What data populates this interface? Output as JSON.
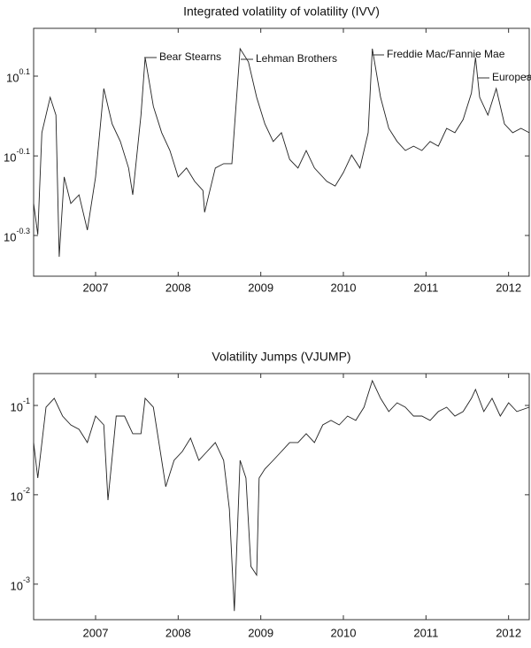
{
  "chart_data": [
    {
      "type": "line",
      "title": "Integrated volatility of volatility (IVV)",
      "log_y": true,
      "annotations": [
        "Bear Stearns",
        "Lehman Brothers",
        "Freddie Mac/Fannie Mae",
        "Europea"
      ],
      "xlim": [
        2006.25,
        2012.25
      ],
      "xticks": [
        2007,
        2008,
        2009,
        2010,
        2011,
        2012
      ],
      "ylim": [
        0.396,
        1.66
      ],
      "yticks": [
        {
          "value": 0.501,
          "label": "10",
          "exponent": "-0.3"
        },
        {
          "value": 0.794,
          "label": "10",
          "exponent": "-0.1"
        },
        {
          "value": 1.259,
          "label": "10",
          "exponent": "0.1"
        }
      ],
      "series": [
        {
          "color": "#222222",
          "x": [
            2006.25,
            2006.3,
            2006.35,
            2006.45,
            2006.52,
            2006.56,
            2006.62,
            2006.7,
            2006.8,
            2006.9,
            2007.0,
            2007.1,
            2007.2,
            2007.3,
            2007.4,
            2007.45,
            2007.55,
            2007.6,
            2007.7,
            2007.8,
            2007.9,
            2008.0,
            2008.1,
            2008.2,
            2008.3,
            2008.32,
            2008.45,
            2008.55,
            2008.65,
            2008.75,
            2008.85,
            2008.95,
            2009.05,
            2009.15,
            2009.25,
            2009.35,
            2009.45,
            2009.55,
            2009.65,
            2009.8,
            2009.9,
            2010.0,
            2010.1,
            2010.2,
            2010.3,
            2010.35,
            2010.45,
            2010.55,
            2010.65,
            2010.75,
            2010.85,
            2010.95,
            2011.05,
            2011.15,
            2011.25,
            2011.35,
            2011.45,
            2011.55,
            2011.6,
            2011.65,
            2011.75,
            2011.85,
            2011.95,
            2012.05,
            2012.15,
            2012.25
          ],
          "values": [
            0.603,
            0.504,
            0.908,
            1.114,
            1.005,
            0.443,
            0.703,
            0.603,
            0.634,
            0.517,
            0.703,
            1.172,
            0.955,
            0.863,
            0.74,
            0.634,
            1.005,
            1.402,
            1.057,
            0.908,
            0.819,
            0.703,
            0.74,
            0.685,
            0.65,
            0.573,
            0.74,
            0.759,
            0.759,
            1.476,
            1.367,
            1.114,
            0.955,
            0.863,
            0.908,
            0.778,
            0.74,
            0.819,
            0.74,
            0.685,
            0.667,
            0.721,
            0.798,
            0.74,
            0.908,
            1.476,
            1.114,
            0.931,
            0.863,
            0.819,
            0.84,
            0.819,
            0.863,
            0.84,
            0.931,
            0.908,
            0.98,
            1.142,
            1.402,
            1.114,
            1.005,
            1.172,
            0.955,
            0.908,
            0.931,
            0.908
          ]
        }
      ]
    },
    {
      "type": "line",
      "title": "Volatility Jumps (VJUMP)",
      "log_y": true,
      "xlim": [
        2006.25,
        2012.25
      ],
      "xticks": [
        2007,
        2008,
        2009,
        2010,
        2011,
        2012
      ],
      "ylim": [
        0.0004,
        0.227
      ],
      "yticks": [
        {
          "value": 0.001,
          "label": "10",
          "exponent": "-3"
        },
        {
          "value": 0.01,
          "label": "10",
          "exponent": "-2"
        },
        {
          "value": 0.1,
          "label": "10",
          "exponent": "-1"
        }
      ],
      "series": [
        {
          "color": "#222222",
          "x": [
            2006.25,
            2006.3,
            2006.4,
            2006.5,
            2006.6,
            2006.7,
            2006.8,
            2006.9,
            2007.0,
            2007.1,
            2007.15,
            2007.25,
            2007.35,
            2007.45,
            2007.55,
            2007.6,
            2007.7,
            2007.8,
            2007.85,
            2007.95,
            2008.05,
            2008.15,
            2008.25,
            2008.35,
            2008.45,
            2008.55,
            2008.62,
            2008.68,
            2008.75,
            2008.82,
            2008.88,
            2008.95,
            2008.98,
            2009.05,
            2009.15,
            2009.25,
            2009.35,
            2009.45,
            2009.55,
            2009.65,
            2009.75,
            2009.85,
            2009.95,
            2010.05,
            2010.15,
            2010.25,
            2010.35,
            2010.45,
            2010.55,
            2010.65,
            2010.75,
            2010.85,
            2010.95,
            2011.05,
            2011.15,
            2011.25,
            2011.35,
            2011.45,
            2011.55,
            2011.6,
            2011.7,
            2011.8,
            2011.9,
            2012.0,
            2012.1,
            2012.25
          ],
          "values": [
            0.0384,
            0.0154,
            0.0955,
            0.12,
            0.076,
            0.0605,
            0.054,
            0.0384,
            0.076,
            0.0605,
            0.0087,
            0.076,
            0.076,
            0.0482,
            0.0482,
            0.12,
            0.0955,
            0.0243,
            0.0123,
            0.0243,
            0.0305,
            0.043,
            0.0243,
            0.0305,
            0.0384,
            0.0243,
            0.0069,
            0.0005,
            0.0243,
            0.0154,
            0.00158,
            0.00126,
            0.0154,
            0.0194,
            0.0243,
            0.0305,
            0.0384,
            0.0384,
            0.0482,
            0.0384,
            0.0605,
            0.0679,
            0.0605,
            0.076,
            0.0679,
            0.0955,
            0.189,
            0.12,
            0.0853,
            0.107,
            0.0955,
            0.076,
            0.076,
            0.0679,
            0.0853,
            0.0955,
            0.076,
            0.0853,
            0.12,
            0.151,
            0.0853,
            0.12,
            0.076,
            0.107,
            0.0853,
            0.0955
          ]
        }
      ]
    }
  ]
}
